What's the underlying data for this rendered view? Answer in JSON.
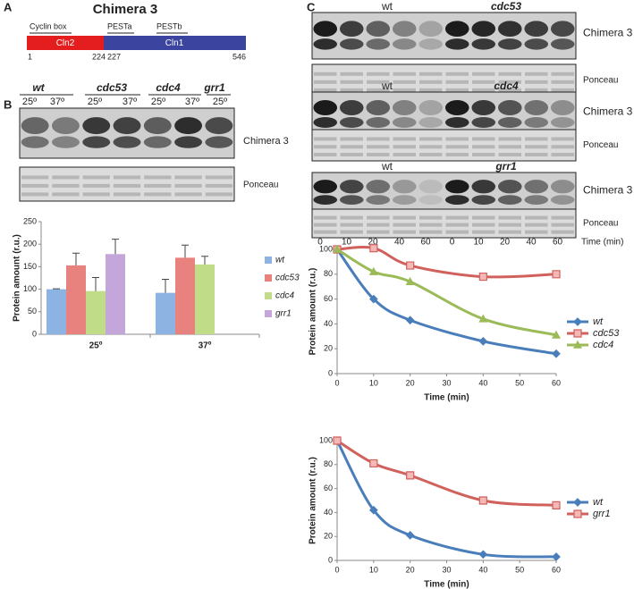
{
  "panels": [
    "A",
    "B",
    "C"
  ],
  "diagram": {
    "title": "Chimera 3",
    "motifs": [
      "Cyclin box",
      "PESTa",
      "PESTb"
    ],
    "segments": [
      "Cln2",
      "Cln1"
    ],
    "positions": [
      1,
      224,
      227,
      546
    ]
  },
  "blot_b": {
    "strains": [
      "wt",
      "cdc53",
      "cdc4",
      "grr1"
    ],
    "temperatures": [
      "25º",
      "37º",
      "25º",
      "37º",
      "25º",
      "37º",
      "25º"
    ],
    "bands": [
      "Chimera 3",
      "Ponceau"
    ]
  },
  "blot_c": {
    "groups": [
      {
        "strains": [
          "wt",
          "cdc53"
        ],
        "bands": [
          "Chimera 3",
          "Ponceau"
        ]
      },
      {
        "strains": [
          "wt",
          "cdc4"
        ],
        "bands": [
          "Chimera 3",
          "Ponceau"
        ]
      },
      {
        "strains": [
          "wt",
          "grr1"
        ],
        "bands": [
          "Chimera 3",
          "Ponceau"
        ]
      }
    ],
    "times": [
      0,
      10,
      20,
      40,
      60,
      0,
      10,
      20,
      40,
      60
    ],
    "time_label": "Time (min)"
  },
  "chart_data": [
    {
      "type": "bar",
      "y_label": "Protein amount (r.u.)",
      "categories": [
        "25º",
        "37º"
      ],
      "series": [
        {
          "name": "wt",
          "color": "#8db3e2",
          "values": [
            100,
            92
          ],
          "errors": [
            1,
            30
          ]
        },
        {
          "name": "cdc53",
          "color": "#e8827f",
          "values": [
            153,
            170
          ],
          "errors": [
            27,
            28
          ]
        },
        {
          "name": "cdc4",
          "color": "#c0dc88",
          "values": [
            96,
            155
          ],
          "errors": [
            30,
            18
          ]
        },
        {
          "name": "grr1",
          "color": "#c4a6da",
          "values": [
            178,
            null
          ],
          "errors": [
            33,
            null
          ]
        }
      ],
      "ylim": [
        0,
        250
      ],
      "yticks": [
        0,
        50,
        100,
        150,
        200,
        250
      ]
    },
    {
      "type": "line",
      "x_label": "Time (min)",
      "y_label": "Protein amount (r.u.)",
      "x": [
        0,
        10,
        20,
        40,
        60
      ],
      "series": [
        {
          "name": "wt",
          "color": "#4a7ebb",
          "marker": "diamond",
          "values": [
            100,
            60,
            43,
            26,
            16
          ]
        },
        {
          "name": "cdc53",
          "color": "#d0615d",
          "marker": "square",
          "values": [
            100,
            101,
            87,
            78,
            80
          ]
        },
        {
          "name": "cdc4",
          "color": "#9bbb59",
          "marker": "triangle",
          "values": [
            100,
            82,
            74,
            44,
            31
          ]
        }
      ],
      "xlim": [
        0,
        60
      ],
      "xticks": [
        0,
        10,
        20,
        30,
        40,
        50,
        60
      ],
      "ylim": [
        0,
        100
      ],
      "yticks": [
        0,
        20,
        40,
        60,
        80,
        100
      ]
    },
    {
      "type": "line",
      "x_label": "Time (min)",
      "y_label": "Protein amount (r.u.)",
      "x": [
        0,
        10,
        20,
        40,
        60
      ],
      "series": [
        {
          "name": "wt",
          "color": "#4a7ebb",
          "marker": "diamond",
          "values": [
            100,
            42,
            21,
            5,
            3
          ]
        },
        {
          "name": "grr1",
          "color": "#d0615d",
          "marker": "square",
          "values": [
            100,
            81,
            71,
            50,
            46
          ]
        }
      ],
      "xlim": [
        0,
        60
      ],
      "xticks": [
        0,
        10,
        20,
        30,
        40,
        50,
        60
      ],
      "ylim": [
        0,
        100
      ],
      "yticks": [
        0,
        20,
        40,
        60,
        80,
        100
      ]
    }
  ]
}
